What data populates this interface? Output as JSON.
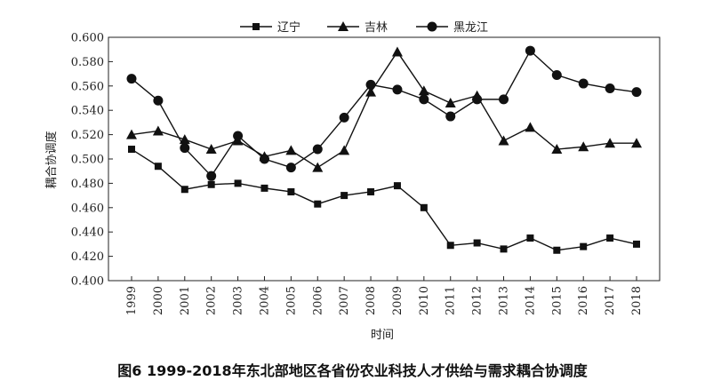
{
  "caption": "图6 1999-2018年东北部地区各省份农业科技人才供给与需求耦合协调度",
  "chart_data": {
    "type": "line",
    "xlabel": "时间",
    "ylabel": "耦合协调度",
    "ylim": [
      0.4,
      0.6
    ],
    "yticks": [
      "0.400",
      "0.420",
      "0.440",
      "0.460",
      "0.480",
      "0.500",
      "0.520",
      "0.540",
      "0.560",
      "0.580",
      "0.600"
    ],
    "categories": [
      "1999",
      "2000",
      "2001",
      "2002",
      "2003",
      "2004",
      "2005",
      "2006",
      "2007",
      "2008",
      "2009",
      "2010",
      "2011",
      "2012",
      "2013",
      "2014",
      "2015",
      "2016",
      "2017",
      "2018"
    ],
    "legend_position": "top-center",
    "series": [
      {
        "name": "辽宁",
        "marker": "square",
        "values": [
          0.508,
          0.494,
          0.475,
          0.479,
          0.48,
          0.476,
          0.473,
          0.463,
          0.47,
          0.473,
          0.478,
          0.46,
          0.429,
          0.431,
          0.426,
          0.435,
          0.425,
          0.428,
          0.435,
          0.43
        ]
      },
      {
        "name": "吉林",
        "marker": "triangle",
        "values": [
          0.52,
          0.523,
          0.516,
          0.508,
          0.515,
          0.502,
          0.507,
          0.493,
          0.507,
          0.555,
          0.588,
          0.556,
          0.546,
          0.552,
          0.515,
          0.526,
          0.508,
          0.51,
          0.513,
          0.513
        ]
      },
      {
        "name": "黑龙江",
        "marker": "circle",
        "values": [
          0.566,
          0.548,
          0.509,
          0.486,
          0.519,
          0.5,
          0.493,
          0.508,
          0.534,
          0.561,
          0.557,
          0.549,
          0.535,
          0.549,
          0.549,
          0.589,
          0.569,
          0.562,
          0.558,
          0.555
        ]
      }
    ]
  }
}
